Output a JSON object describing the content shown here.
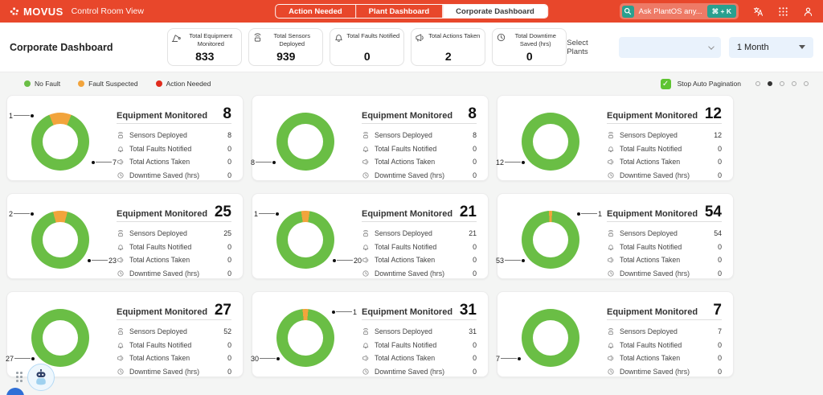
{
  "header": {
    "logo_text": "MOVUS",
    "app_title": "Control Room View",
    "tabs": [
      {
        "label": "Action Needed",
        "active": false
      },
      {
        "label": "Plant Dashboard",
        "active": false
      },
      {
        "label": "Corporate Dashboard",
        "active": true
      }
    ],
    "search": {
      "placeholder": "Ask PlantOS any...",
      "shortcut": "⌘ + K",
      "icon": "search-icon"
    },
    "icons": [
      "translate-icon",
      "apps-grid-icon",
      "user-icon"
    ]
  },
  "subheader": {
    "title": "Corporate Dashboard",
    "kpis": [
      {
        "icon": "equipment-icon",
        "label": "Total Equipment Monitored",
        "value": "833"
      },
      {
        "icon": "sensor-icon",
        "label": "Total Sensors Deployed",
        "value": "939"
      },
      {
        "icon": "fault-icon",
        "label": "Total Faults Notified",
        "value": "0"
      },
      {
        "icon": "action-icon",
        "label": "Total Actions Taken",
        "value": "2"
      },
      {
        "icon": "downtime-icon",
        "label": "Total Downtime Saved (hrs)",
        "value": "0"
      }
    ],
    "filters": {
      "select_plants_label": "Select Plants",
      "plants_value": "",
      "period_value": "1 Month"
    }
  },
  "legend": {
    "items": [
      {
        "label": "No Fault",
        "color": "#6abe45"
      },
      {
        "label": "Fault Suspected",
        "color": "#f2a43c"
      },
      {
        "label": "Action Needed",
        "color": "#e02b1d"
      }
    ],
    "stop_auto_pagination": {
      "label": "Stop Auto Pagination",
      "checked": true
    },
    "pagination": {
      "dot_count": 5,
      "active_index": 1
    }
  },
  "colors": {
    "brand_red": "#e8472b",
    "teal": "#2aa08f",
    "no_fault": "#6abe45",
    "fault_suspected": "#f2a43c",
    "action_needed": "#e02b1d",
    "filter_bg": "#e9f2fc",
    "checkbox_green": "#5ec431"
  },
  "stat_icons": [
    "sensor-icon",
    "fault-icon",
    "action-icon",
    "clock-icon"
  ],
  "cards": [
    {
      "title": "Equipment Monitored",
      "value": "8",
      "stats": [
        {
          "label": "Sensors Deployed",
          "value": "8"
        },
        {
          "label": "Total Faults Notified",
          "value": "0"
        },
        {
          "label": "Total Actions Taken",
          "value": "0"
        },
        {
          "label": "Downtime Saved (hrs)",
          "value": "0"
        }
      ],
      "donut": {
        "no_fault": 7,
        "fault_suspected": 1
      },
      "callouts": [
        {
          "value": "1",
          "position": "top-left"
        },
        {
          "value": "7",
          "position": "bottom-right"
        }
      ]
    },
    {
      "title": "Equipment Monitored",
      "value": "8",
      "stats": [
        {
          "label": "Sensors Deployed",
          "value": "8"
        },
        {
          "label": "Total Faults Notified",
          "value": "0"
        },
        {
          "label": "Total Actions Taken",
          "value": "0"
        },
        {
          "label": "Downtime Saved (hrs)",
          "value": "0"
        }
      ],
      "donut": {
        "no_fault": 8,
        "fault_suspected": 0
      },
      "callouts": [
        {
          "value": "8",
          "position": "bottom-left"
        }
      ]
    },
    {
      "title": "Equipment Monitored",
      "value": "12",
      "stats": [
        {
          "label": "Sensors Deployed",
          "value": "12"
        },
        {
          "label": "Total Faults Notified",
          "value": "0"
        },
        {
          "label": "Total Actions Taken",
          "value": "0"
        },
        {
          "label": "Downtime Saved (hrs)",
          "value": "0"
        }
      ],
      "donut": {
        "no_fault": 12,
        "fault_suspected": 0
      },
      "callouts": [
        {
          "value": "12",
          "position": "bottom-left"
        }
      ]
    },
    {
      "title": "Equipment Monitored",
      "value": "25",
      "stats": [
        {
          "label": "Sensors Deployed",
          "value": "25"
        },
        {
          "label": "Total Faults Notified",
          "value": "0"
        },
        {
          "label": "Total Actions Taken",
          "value": "0"
        },
        {
          "label": "Downtime Saved (hrs)",
          "value": "0"
        }
      ],
      "donut": {
        "no_fault": 23,
        "fault_suspected": 2
      },
      "callouts": [
        {
          "value": "2",
          "position": "top-left"
        },
        {
          "value": "23",
          "position": "bottom-right"
        }
      ]
    },
    {
      "title": "Equipment Monitored",
      "value": "21",
      "stats": [
        {
          "label": "Sensors Deployed",
          "value": "21"
        },
        {
          "label": "Total Faults Notified",
          "value": "0"
        },
        {
          "label": "Total Actions Taken",
          "value": "0"
        },
        {
          "label": "Downtime Saved (hrs)",
          "value": "0"
        }
      ],
      "donut": {
        "no_fault": 20,
        "fault_suspected": 1
      },
      "callouts": [
        {
          "value": "1",
          "position": "top-left"
        },
        {
          "value": "20",
          "position": "bottom-right"
        }
      ]
    },
    {
      "title": "Equipment Monitored",
      "value": "54",
      "stats": [
        {
          "label": "Sensors Deployed",
          "value": "54"
        },
        {
          "label": "Total Faults Notified",
          "value": "0"
        },
        {
          "label": "Total Actions Taken",
          "value": "0"
        },
        {
          "label": "Downtime Saved (hrs)",
          "value": "0"
        }
      ],
      "donut": {
        "no_fault": 53,
        "fault_suspected": 1
      },
      "callouts": [
        {
          "value": "1",
          "position": "top-right"
        },
        {
          "value": "53",
          "position": "bottom-left"
        }
      ]
    },
    {
      "title": "Equipment Monitored",
      "value": "27",
      "stats": [
        {
          "label": "Sensors Deployed",
          "value": "52"
        },
        {
          "label": "Total Faults Notified",
          "value": "0"
        },
        {
          "label": "Total Actions Taken",
          "value": "0"
        },
        {
          "label": "Downtime Saved (hrs)",
          "value": "0"
        }
      ],
      "donut": {
        "no_fault": 27,
        "fault_suspected": 0
      },
      "callouts": [
        {
          "value": "27",
          "position": "bottom-left"
        }
      ]
    },
    {
      "title": "Equipment Monitored",
      "value": "31",
      "stats": [
        {
          "label": "Sensors Deployed",
          "value": "31"
        },
        {
          "label": "Total Faults Notified",
          "value": "0"
        },
        {
          "label": "Total Actions Taken",
          "value": "0"
        },
        {
          "label": "Downtime Saved (hrs)",
          "value": "0"
        }
      ],
      "donut": {
        "no_fault": 30,
        "fault_suspected": 1
      },
      "callouts": [
        {
          "value": "1",
          "position": "top-right"
        },
        {
          "value": "30",
          "position": "bottom-left"
        }
      ]
    },
    {
      "title": "Equipment Monitored",
      "value": "7",
      "stats": [
        {
          "label": "Sensors Deployed",
          "value": "7"
        },
        {
          "label": "Total Faults Notified",
          "value": "0"
        },
        {
          "label": "Total Actions Taken",
          "value": "0"
        },
        {
          "label": "Downtime Saved (hrs)",
          "value": "0"
        }
      ],
      "donut": {
        "no_fault": 7,
        "fault_suspected": 0
      },
      "callouts": [
        {
          "value": "7",
          "position": "bottom-left"
        }
      ]
    }
  ],
  "chatbot": {
    "icon": "robot-icon"
  }
}
